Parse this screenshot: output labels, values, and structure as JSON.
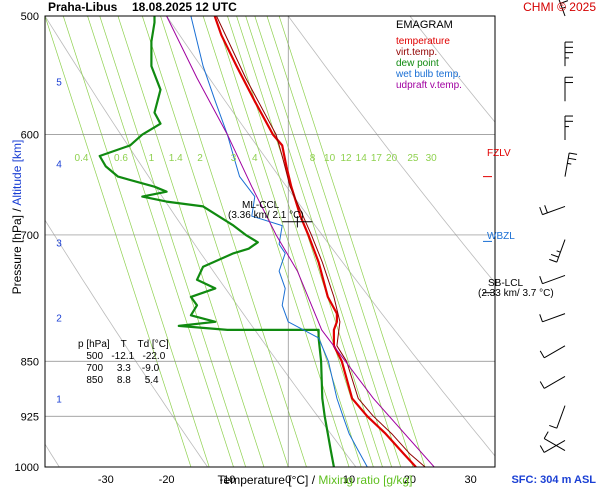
{
  "header": {
    "station": "Praha-Libus",
    "datetime": "18.08.2025 12 UTC",
    "copyright": "CHMI © 2025",
    "sfc": "SFC: 304 m ASL"
  },
  "axes": {
    "xlabel_temp": "Temperature [°C]",
    "xlabel_sep": "/",
    "xlabel_mix": "Mixing ratio [g/kg]",
    "ylabel_p": "Pressure [hPa]",
    "ylabel_sep": "/",
    "ylabel_alt": "Altitude [km]"
  },
  "legend": {
    "title": "EMAGRAM",
    "items": [
      {
        "label": "temperature",
        "color": "#e00000"
      },
      {
        "label": "virt.temp.",
        "color": "#900000"
      },
      {
        "label": "dew point",
        "color": "#108a10"
      },
      {
        "label": "wet bulb temp.",
        "color": "#1a6fd4"
      },
      {
        "label": "udpraft v.temp.",
        "color": "#a000a0"
      }
    ]
  },
  "table": {
    "header": "p [hPa]    T    Td [°C]",
    "rows": [
      "   500   -12.1   -22.0",
      "   700     3.3    -9.0",
      "   850     8.8     5.4"
    ]
  },
  "annotations": {
    "ml_ccl_1": "ML-CCL",
    "ml_ccl_2": "(3.36 km/ 2.1 °C)",
    "sb_lcl_1": "SB-LCL",
    "sb_lcl_2": "(2.33 km/ 3.7 °C)",
    "fzlv": "FZLV",
    "wbzl": "WBZL"
  },
  "colors": {
    "temperature": "#e00000",
    "virt_temp": "#900000",
    "dew_point": "#108a10",
    "wet_bulb": "#1a6fd4",
    "updraft": "#a000a0",
    "mixing": "#8fd14f",
    "dry_adiabat": "#bbbbbb",
    "frame": "#000000",
    "isobar": "#888888",
    "altitude": "#1a3fd4"
  },
  "chart_data": {
    "type": "line",
    "title": "Praha-Libus 18.08.2025 12 UTC",
    "xlabel": "Temperature [°C] / Mixing ratio [g/kg]",
    "ylabel": "Pressure [hPa] / Altitude [km]",
    "xlim": [
      -40,
      34
    ],
    "ylim": [
      1000,
      500
    ],
    "y_scale": "log",
    "x_ticks": [
      -30,
      -20,
      -10,
      0,
      10,
      20,
      30
    ],
    "pressure_ticks": [
      500,
      600,
      700,
      850,
      925,
      1000
    ],
    "altitude_ticks": [
      {
        "km": 1,
        "p": 900
      },
      {
        "km": 2,
        "p": 795
      },
      {
        "km": 3,
        "p": 708
      },
      {
        "km": 4,
        "p": 627
      },
      {
        "km": 5,
        "p": 553
      }
    ],
    "mixing_ratio_labels": [
      "0.4",
      "0.6",
      "1",
      "1.4",
      "2",
      "3",
      "4",
      "8",
      "10",
      "12",
      "14",
      "17",
      "20",
      "25",
      "30"
    ],
    "mixing_ratio_label_x": [
      -34,
      -27.5,
      -22.5,
      -18.5,
      -14.5,
      -9,
      -5.5,
      4,
      6.8,
      9.5,
      12,
      14.5,
      17,
      20.5,
      23.5
    ],
    "mixing_ratio_line_top_x": [
      -40,
      -37,
      -33,
      -31,
      -28,
      -24,
      -21,
      -14,
      -12,
      -10,
      -8.5,
      -7,
      -5.5,
      -3.5,
      -1.5
    ],
    "dry_adiabat_top_x": [
      -180,
      -160,
      -140,
      -120,
      -100,
      -80,
      -60,
      -40,
      -20,
      0,
      20
    ],
    "grid": false,
    "legend_position": "top-right",
    "series": [
      {
        "name": "temperature",
        "points": [
          [
            21,
            1000
          ],
          [
            19,
            980
          ],
          [
            16,
            950
          ],
          [
            13,
            925
          ],
          [
            10.5,
            900
          ],
          [
            8.8,
            850
          ],
          [
            7.5,
            830
          ],
          [
            7.5,
            810
          ],
          [
            8,
            800
          ],
          [
            8,
            790
          ],
          [
            6.5,
            770
          ],
          [
            5,
            730
          ],
          [
            3.3,
            700
          ],
          [
            2,
            680
          ],
          [
            0.5,
            650
          ],
          [
            -0.3,
            630
          ],
          [
            -1,
            610
          ],
          [
            -2.5,
            600
          ],
          [
            -5.5,
            570
          ],
          [
            -8.5,
            540
          ],
          [
            -11,
            515
          ],
          [
            -12.1,
            500
          ]
        ]
      },
      {
        "name": "virt.temp.",
        "points": [
          [
            22.5,
            1000
          ],
          [
            20,
            980
          ],
          [
            17,
            950
          ],
          [
            14,
            925
          ],
          [
            11.5,
            900
          ],
          [
            9.6,
            850
          ],
          [
            8,
            830
          ],
          [
            8.5,
            800
          ],
          [
            7.5,
            770
          ],
          [
            5.6,
            730
          ],
          [
            3.8,
            700
          ],
          [
            0.3,
            650
          ],
          [
            -1,
            620
          ],
          [
            -2,
            600
          ],
          [
            -7,
            550
          ],
          [
            -11.8,
            500
          ]
        ]
      },
      {
        "name": "dew point",
        "points": [
          [
            7.5,
            1000
          ],
          [
            7,
            975
          ],
          [
            6.5,
            950
          ],
          [
            6,
            925
          ],
          [
            5.6,
            900
          ],
          [
            5.4,
            850
          ],
          [
            5,
            820
          ],
          [
            5,
            810
          ],
          [
            -5,
            810
          ],
          [
            -10,
            810
          ],
          [
            -18,
            805
          ],
          [
            -12,
            800
          ],
          [
            -16,
            792
          ],
          [
            -15,
            780
          ],
          [
            -16,
            770
          ],
          [
            -12,
            760
          ],
          [
            -15,
            750
          ],
          [
            -14,
            735
          ],
          [
            -9,
            720
          ],
          [
            -6.5,
            715
          ],
          [
            -5,
            708
          ],
          [
            -7,
            700
          ],
          [
            -9,
            690
          ],
          [
            -14,
            670
          ],
          [
            -20,
            665
          ],
          [
            -24,
            660
          ],
          [
            -20,
            655
          ],
          [
            -22,
            650
          ],
          [
            -28,
            640
          ],
          [
            -30,
            630
          ],
          [
            -31,
            620
          ],
          [
            -26,
            610
          ],
          [
            -24,
            600
          ],
          [
            -21,
            590
          ],
          [
            -22,
            580
          ],
          [
            -21,
            560
          ],
          [
            -22.5,
            540
          ],
          [
            -22.5,
            520
          ],
          [
            -22,
            505
          ],
          [
            -22,
            500
          ]
        ]
      },
      {
        "name": "wet bulb temp.",
        "points": [
          [
            13,
            1000
          ],
          [
            11.5,
            975
          ],
          [
            10,
            950
          ],
          [
            9,
            925
          ],
          [
            8,
            900
          ],
          [
            6.6,
            850
          ],
          [
            5,
            820
          ],
          [
            0,
            800
          ],
          [
            -1,
            780
          ],
          [
            -0.5,
            760
          ],
          [
            -1.5,
            740
          ],
          [
            -0.5,
            720
          ],
          [
            -1.5,
            710
          ],
          [
            -1,
            690
          ],
          [
            -6,
            680
          ],
          [
            -5.5,
            660
          ],
          [
            -8,
            640
          ],
          [
            -9,
            620
          ],
          [
            -10,
            600
          ],
          [
            -12,
            570
          ],
          [
            -14,
            540
          ],
          [
            -16,
            500
          ]
        ]
      },
      {
        "name": "udpraft v.temp.",
        "points": [
          [
            24,
            1000
          ],
          [
            14,
            900
          ],
          [
            5.5,
            810
          ],
          [
            1.5,
            740
          ],
          [
            -2,
            700
          ],
          [
            -6,
            650
          ],
          [
            -10,
            600
          ],
          [
            -15,
            550
          ],
          [
            -20,
            500
          ]
        ]
      }
    ],
    "winds": [
      {
        "p": 500,
        "dir": 340,
        "speed": 25
      },
      {
        "p": 540,
        "dir": 0,
        "speed": 25
      },
      {
        "p": 570,
        "dir": 0,
        "speed": 20
      },
      {
        "p": 605,
        "dir": 0,
        "speed": 15
      },
      {
        "p": 640,
        "dir": 10,
        "speed": 15
      },
      {
        "p": 670,
        "dir": 250,
        "speed": 20
      },
      {
        "p": 705,
        "dir": 200,
        "speed": 15
      },
      {
        "p": 745,
        "dir": 250,
        "speed": 10
      },
      {
        "p": 790,
        "dir": 250,
        "speed": 10
      },
      {
        "p": 830,
        "dir": 240,
        "speed": 10
      },
      {
        "p": 870,
        "dir": 240,
        "speed": 10
      },
      {
        "p": 910,
        "dir": 200,
        "speed": 10
      },
      {
        "p": 960,
        "dir": 240,
        "speed": 10
      },
      {
        "p": 975,
        "dir": 300,
        "speed": 10
      }
    ]
  }
}
